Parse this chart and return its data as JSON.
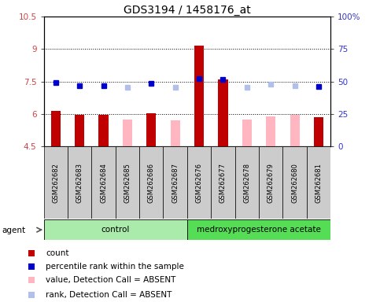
{
  "title": "GDS3194 / 1458176_at",
  "samples": [
    "GSM262682",
    "GSM262683",
    "GSM262684",
    "GSM262685",
    "GSM262686",
    "GSM262687",
    "GSM262676",
    "GSM262677",
    "GSM262678",
    "GSM262679",
    "GSM262680",
    "GSM262681"
  ],
  "values": [
    6.15,
    5.95,
    5.95,
    5.75,
    6.05,
    5.72,
    9.15,
    7.6,
    5.75,
    5.88,
    5.95,
    5.85
  ],
  "ranks": [
    7.45,
    7.3,
    7.3,
    7.22,
    7.42,
    7.22,
    7.62,
    7.58,
    7.25,
    7.38,
    7.32,
    7.28
  ],
  "absent": [
    false,
    false,
    false,
    true,
    false,
    true,
    false,
    false,
    true,
    true,
    true,
    false
  ],
  "rank_absent": [
    false,
    false,
    false,
    true,
    false,
    true,
    false,
    false,
    true,
    true,
    true,
    false
  ],
  "ylim_left": [
    4.5,
    10.5
  ],
  "ylim_right": [
    0,
    100
  ],
  "yticks_left": [
    4.5,
    6.0,
    7.5,
    9.0,
    10.5
  ],
  "yticks_right": [
    0,
    25,
    50,
    75,
    100
  ],
  "ytick_labels_left": [
    "4.5",
    "6",
    "7.5",
    "9",
    "10.5"
  ],
  "ytick_labels_right": [
    "0",
    "25",
    "50",
    "75",
    "100%"
  ],
  "dotted_lines": [
    6.0,
    7.5,
    9.0
  ],
  "bar_bottom": 4.5,
  "bar_color_present": "#C00000",
  "bar_color_absent": "#FFB6C1",
  "rank_color_present": "#0000CD",
  "rank_color_absent": "#B0C0E8",
  "control_color": "#AAEAAA",
  "medroxy_color": "#55DD55",
  "legend_items": [
    "count",
    "percentile rank within the sample",
    "value, Detection Call = ABSENT",
    "rank, Detection Call = ABSENT"
  ],
  "legend_colors": [
    "#C00000",
    "#0000CD",
    "#FFB6C1",
    "#B0C0E8"
  ],
  "agent_label": "agent"
}
